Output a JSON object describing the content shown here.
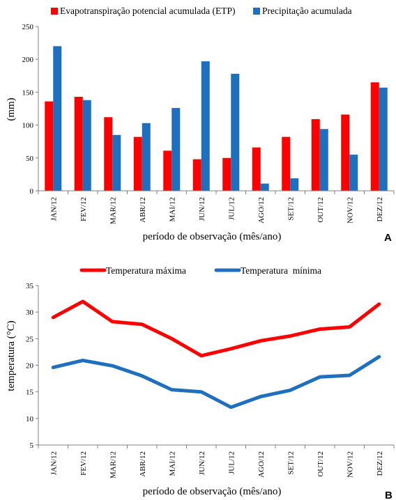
{
  "chart_data": [
    {
      "type": "bar",
      "panel_label": "A",
      "categories": [
        "JAN/12",
        "FEV/12",
        "MAR/12",
        "ABR/12",
        "MAI/12",
        "JUN/12",
        "JUL/12",
        "AGO/12",
        "SET/12",
        "OUT/12",
        "NOV/12",
        "DEZ/12"
      ],
      "series": [
        {
          "name": "Evapotranspiração potencial acumulada (ETP)",
          "color": "#ff0000",
          "values": [
            136,
            143,
            112,
            82,
            61,
            48,
            50,
            66,
            82,
            109,
            116,
            165
          ]
        },
        {
          "name": "Precipitação acumulada",
          "color": "#1f6fbf",
          "values": [
            220,
            138,
            85,
            103,
            126,
            197,
            178,
            11,
            19,
            94,
            55,
            157
          ]
        }
      ],
      "xlabel": "período de observação (mês/ano)",
      "ylabel": "(mm)",
      "ylim": [
        0,
        250
      ],
      "yticks": [
        0,
        50,
        100,
        150,
        200,
        250
      ],
      "legend": "top",
      "grid": false
    },
    {
      "type": "line",
      "panel_label": "B",
      "categories": [
        "JAN/12",
        "FEV/12",
        "MAR/12",
        "ABR/12",
        "MAI/12",
        "JUN/12",
        "JUL/12",
        "AGO/12",
        "SET/12",
        "OUT/12",
        "NOV/12",
        "DEZ/12"
      ],
      "series": [
        {
          "name": "Temperatura máxima",
          "color": "#ff0000",
          "values": [
            29.0,
            32.0,
            28.2,
            27.7,
            25.0,
            21.8,
            23.1,
            24.6,
            25.5,
            26.8,
            27.2,
            31.5
          ]
        },
        {
          "name": "Temperatura  mínima",
          "color": "#1f6fbf",
          "values": [
            19.6,
            20.9,
            19.9,
            18.0,
            15.4,
            15.0,
            12.1,
            14.1,
            15.3,
            17.8,
            18.1,
            21.6
          ]
        }
      ],
      "xlabel": "período de observação (mês/ano)",
      "ylabel": "temperatura (°C)",
      "ylim": [
        5,
        35
      ],
      "yticks": [
        5,
        10,
        15,
        20,
        25,
        30,
        35
      ],
      "legend": "top",
      "grid": false
    }
  ]
}
